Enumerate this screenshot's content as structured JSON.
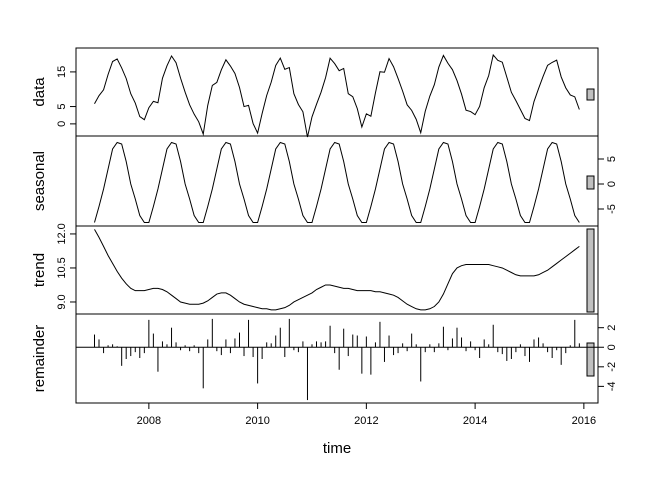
{
  "chart_data": {
    "type": "stl",
    "xlabel": "time",
    "xlim": [
      2006.66,
      2016.26
    ],
    "xticks": [
      2008,
      2010,
      2012,
      2014,
      2016
    ],
    "color": "#000000",
    "x": [
      2007,
      2007.083,
      2007.167,
      2007.25,
      2007.333,
      2007.417,
      2007.5,
      2007.583,
      2007.667,
      2007.75,
      2007.833,
      2007.917,
      2008,
      2008.083,
      2008.167,
      2008.25,
      2008.333,
      2008.417,
      2008.5,
      2008.583,
      2008.667,
      2008.75,
      2008.833,
      2008.917,
      2009,
      2009.083,
      2009.167,
      2009.25,
      2009.333,
      2009.417,
      2009.5,
      2009.583,
      2009.667,
      2009.75,
      2009.833,
      2009.917,
      2010,
      2010.083,
      2010.167,
      2010.25,
      2010.333,
      2010.417,
      2010.5,
      2010.583,
      2010.667,
      2010.75,
      2010.833,
      2010.917,
      2011,
      2011.083,
      2011.167,
      2011.25,
      2011.333,
      2011.417,
      2011.5,
      2011.583,
      2011.667,
      2011.75,
      2011.833,
      2011.917,
      2012,
      2012.083,
      2012.167,
      2012.25,
      2012.333,
      2012.417,
      2012.5,
      2012.583,
      2012.667,
      2012.75,
      2012.833,
      2012.917,
      2013,
      2013.083,
      2013.167,
      2013.25,
      2013.333,
      2013.417,
      2013.5,
      2013.583,
      2013.667,
      2013.75,
      2013.833,
      2013.917,
      2014,
      2014.083,
      2014.167,
      2014.25,
      2014.333,
      2014.417,
      2014.5,
      2014.583,
      2014.667,
      2014.75,
      2014.833,
      2014.917,
      2015,
      2015.083,
      2015.167,
      2015.25,
      2015.333,
      2015.417,
      2015.5,
      2015.583,
      2015.667,
      2015.75,
      2015.833,
      2015.917
    ],
    "panels": [
      {
        "type": "line",
        "ylabel": "data",
        "axis_side": "left",
        "ylim": [
          -3.5,
          21.9
        ],
        "yticks": [
          0,
          5,
          15
        ],
        "values": [
          5.8,
          8.15,
          9.85,
          14.25,
          18,
          18.75,
          16.15,
          13.1,
          8.7,
          6,
          2.1,
          1.2,
          4.65,
          6.5,
          6.1,
          13.15,
          16.75,
          19.6,
          17.65,
          13.2,
          9.15,
          5.5,
          2.8,
          0.6,
          -2.95,
          5.35,
          11.1,
          11.95,
          15.6,
          18.5,
          16.7,
          14.55,
          10.5,
          5,
          5.35,
          0.1,
          -2.65,
          3,
          8.2,
          12.05,
          16.85,
          19,
          15.75,
          16.25,
          8.7,
          5.6,
          3.5,
          -3.8,
          2,
          5.65,
          9.15,
          13.35,
          18.95,
          17.4,
          15.35,
          16,
          8.7,
          7.85,
          4.4,
          -0.9,
          2.9,
          2.2,
          8.95,
          15.05,
          14.9,
          18.85,
          16.5,
          13.1,
          9.45,
          5.5,
          3.9,
          1.3,
          -2.55,
          3.65,
          8,
          11.3,
          16.4,
          19.75,
          17.5,
          15.65,
          12.5,
          8.6,
          3.95,
          3.55,
          2.65,
          5.05,
          10.45,
          13.95,
          19.9,
          18.35,
          17.8,
          13.5,
          9.1,
          6.7,
          4.15,
          1.55,
          0.95,
          6.45,
          10.2,
          13.7,
          16.9,
          17.75,
          18.4,
          13.55,
          10.4,
          8.35,
          7.8,
          4.15
        ]
      },
      {
        "type": "line",
        "ylabel": "seasonal",
        "axis_side": "right",
        "ylim": [
          -8.4,
          9.6
        ],
        "yticks": [
          -5,
          0,
          5
        ],
        "values": [
          -7.7,
          -4.5,
          -1,
          3,
          7,
          8.3,
          8,
          4.5,
          0,
          -3,
          -6.3,
          -7.7,
          -7.7,
          -4.5,
          -1,
          3,
          7,
          8.3,
          8,
          4.5,
          0,
          -3,
          -6.3,
          -7.7,
          -7.7,
          -4.5,
          -1,
          3,
          7,
          8.3,
          8,
          4.5,
          0,
          -3,
          -6.3,
          -7.7,
          -7.7,
          -4.5,
          -1,
          3,
          7,
          8.3,
          8,
          4.5,
          0,
          -3,
          -6.3,
          -7.7,
          -7.7,
          -4.5,
          -1,
          3,
          7,
          8.3,
          8,
          4.5,
          0,
          -3,
          -6.3,
          -7.7,
          -7.7,
          -4.5,
          -1,
          3,
          7,
          8.3,
          8,
          4.5,
          0,
          -3,
          -6.3,
          -7.7,
          -7.7,
          -4.5,
          -1,
          3,
          7,
          8.3,
          8,
          4.5,
          0,
          -3,
          -6.3,
          -7.7,
          -7.7,
          -4.5,
          -1,
          3,
          7,
          8.3,
          8,
          4.5,
          0,
          -3,
          -6.3,
          -7.7,
          -7.7,
          -4.5,
          -1,
          3,
          7,
          8.3,
          8,
          4.5,
          0,
          -3,
          -6.3,
          -7.7
        ]
      },
      {
        "type": "line",
        "ylabel": "trend",
        "axis_side": "left",
        "ylim": [
          8.47,
          12.35
        ],
        "yticks": [
          {
            "value": 9,
            "label": "9.0"
          },
          {
            "value": 10.5,
            "label": "10.5"
          },
          {
            "value": 12,
            "label": "12.0"
          }
        ],
        "values": [
          12.2,
          11.85,
          11.45,
          11.05,
          10.7,
          10.35,
          10.05,
          9.8,
          9.6,
          9.5,
          9.5,
          9.5,
          9.55,
          9.6,
          9.6,
          9.55,
          9.45,
          9.3,
          9.15,
          9,
          8.95,
          8.9,
          8.9,
          8.9,
          8.95,
          9.05,
          9.2,
          9.35,
          9.4,
          9.4,
          9.3,
          9.15,
          9,
          8.9,
          8.85,
          8.8,
          8.75,
          8.7,
          8.7,
          8.65,
          8.65,
          8.7,
          8.75,
          8.85,
          9,
          9.1,
          9.2,
          9.3,
          9.4,
          9.55,
          9.65,
          9.75,
          9.75,
          9.7,
          9.65,
          9.6,
          9.6,
          9.55,
          9.5,
          9.5,
          9.5,
          9.5,
          9.45,
          9.45,
          9.4,
          9.35,
          9.3,
          9.2,
          9.05,
          8.9,
          8.8,
          8.7,
          8.65,
          8.65,
          8.7,
          8.8,
          9,
          9.35,
          9.8,
          10.25,
          10.5,
          10.6,
          10.65,
          10.65,
          10.65,
          10.65,
          10.65,
          10.65,
          10.6,
          10.55,
          10.5,
          10.4,
          10.3,
          10.2,
          10.15,
          10.15,
          10.15,
          10.15,
          10.2,
          10.3,
          10.4,
          10.55,
          10.7,
          10.85,
          11,
          11.15,
          11.3,
          11.45
        ]
      },
      {
        "type": "bar",
        "ylabel": "remainder",
        "axis_side": "right",
        "ylim": [
          -5.7,
          3.4
        ],
        "yticks": [
          -4,
          -2,
          0,
          2
        ],
        "values": [
          1.3,
          0.8,
          -0.6,
          0.2,
          0.3,
          0.1,
          -1.9,
          -1.2,
          -0.9,
          -0.5,
          -1.1,
          -0.6,
          2.8,
          1.4,
          -2.5,
          0.6,
          0.3,
          2,
          0.5,
          -0.3,
          0.2,
          -0.4,
          0.2,
          -0.6,
          -4.2,
          0.8,
          2.9,
          -0.4,
          -0.8,
          0.8,
          -0.6,
          0.9,
          1.5,
          -0.9,
          2.8,
          -1,
          -3.7,
          -1.2,
          0.5,
          0.4,
          1.2,
          2,
          -1,
          2.9,
          -0.3,
          -0.5,
          0.6,
          -5.4,
          0.3,
          0.6,
          0.5,
          0.6,
          2.2,
          -0.6,
          -2.3,
          1.9,
          -0.9,
          1.3,
          1.2,
          -2.7,
          1.1,
          -2.8,
          0.5,
          2.6,
          -1.5,
          1.2,
          -0.8,
          -0.6,
          0.4,
          -0.4,
          1.4,
          0.3,
          -3.5,
          -0.5,
          0.3,
          -0.5,
          0.4,
          2.1,
          -0.3,
          0.9,
          2,
          1,
          -0.4,
          0.6,
          -0.3,
          -1.1,
          0.8,
          0.3,
          2.3,
          -0.5,
          -0.7,
          -1.4,
          -1.2,
          -0.5,
          0.3,
          -0.9,
          -1.5,
          0.8,
          1,
          0.4,
          -0.5,
          -1.1,
          -0.3,
          -1.8,
          -0.6,
          0.2,
          2.8,
          0.4
        ]
      }
    ]
  }
}
